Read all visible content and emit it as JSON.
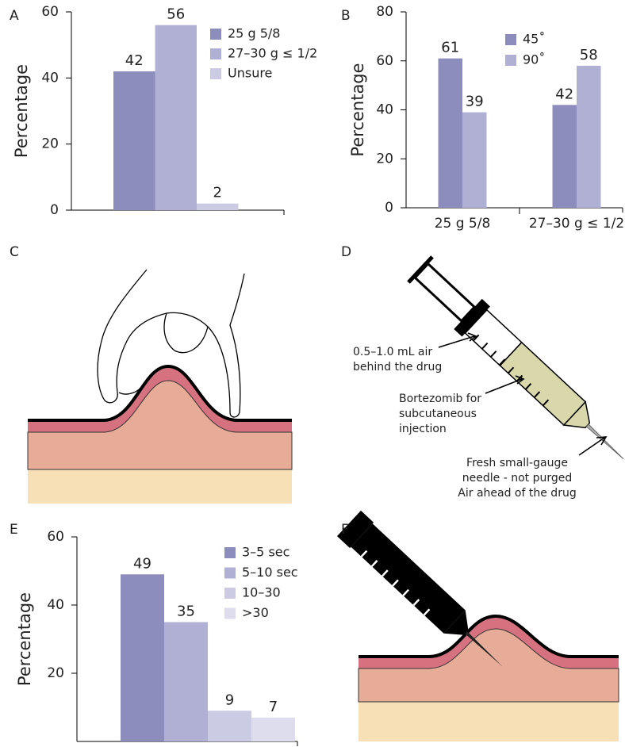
{
  "chart_data": [
    {
      "type": "bar",
      "panel": "A",
      "ylabel": "Percentage",
      "categories": [
        "25 g 5/8",
        "27–30 g ≤ 1/2",
        "Unsure"
      ],
      "values": [
        42,
        56,
        2
      ],
      "colors": [
        "#8c8cbd",
        "#b0b0d4",
        "#cbcbe3"
      ],
      "ylim": [
        0,
        60
      ],
      "yticks": [
        0,
        20,
        40,
        60
      ]
    },
    {
      "type": "bar",
      "panel": "B",
      "ylabel": "Percentage",
      "categories": [
        "25 g 5/8",
        "27–30 g ≤ 1/2"
      ],
      "series": [
        {
          "name": "45˚",
          "color": "#8c8cbd",
          "values": [
            61,
            42
          ]
        },
        {
          "name": "90˚",
          "color": "#b0b0d4",
          "values": [
            39,
            58
          ]
        }
      ],
      "ylim": [
        0,
        80
      ],
      "yticks": [
        0,
        20,
        40,
        60,
        80
      ]
    },
    {
      "type": "illustration",
      "panel": "C"
    },
    {
      "type": "illustration",
      "panel": "D",
      "annotations": [
        [
          "0.5–1.0 mL air",
          "behind the drug"
        ],
        [
          "Bortezomib for",
          "subcutaneous",
          "injection"
        ],
        [
          "Fresh small-gauge",
          "needle - not purged",
          "Air ahead of the drug"
        ]
      ]
    },
    {
      "type": "bar",
      "panel": "E",
      "ylabel": "Percentage",
      "categories": [
        "3–5 sec",
        "5–10 sec",
        "10–30",
        ">30"
      ],
      "values": [
        49,
        35,
        9,
        7
      ],
      "colors": [
        "#8c8cbd",
        "#b0b0d4",
        "#cbcbe3",
        "#dddded"
      ],
      "ylim": [
        0,
        60
      ],
      "yticks": [
        20,
        40,
        60
      ]
    },
    {
      "type": "illustration",
      "panel": "F"
    }
  ]
}
